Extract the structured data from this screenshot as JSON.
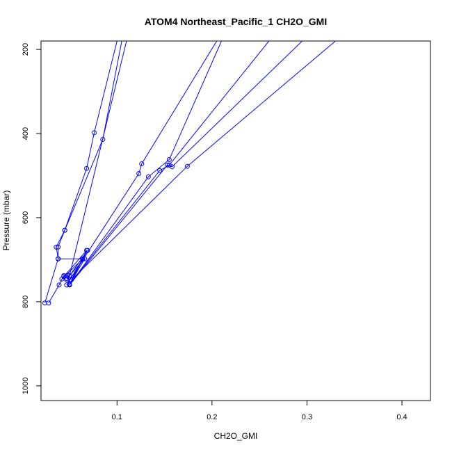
{
  "chart_data": {
    "type": "line",
    "title": "ATOM4 Northeast_Pacific_1 CH2O_GMI",
    "xlabel": "CH2O_GMI",
    "ylabel": "Pressure (mbar)",
    "xlim": [
      0.02,
      0.43
    ],
    "ylim": [
      1035,
      180
    ],
    "x_ticks": [
      0.1,
      0.2,
      0.3,
      0.4
    ],
    "x_tick_labels": [
      "0.1",
      "0.2",
      "0.3",
      "0.4"
    ],
    "y_ticks": [
      200,
      400,
      600,
      800,
      1000
    ],
    "y_tick_labels": [
      "200",
      "400",
      "600",
      "800",
      "1000"
    ],
    "grid": false,
    "line_color": "#0000ff",
    "series": [
      {
        "points": [
          [
            0.028,
            803
          ],
          [
            0.039,
            760
          ],
          [
            0.044,
            738
          ],
          [
            0.048,
            738
          ],
          [
            0.05,
            738
          ],
          [
            0.11,
            180
          ]
        ]
      },
      {
        "points": [
          [
            0.024,
            803
          ],
          [
            0.038,
            698
          ],
          [
            0.038,
            670
          ],
          [
            0.045,
            630
          ],
          [
            0.068,
            483
          ],
          [
            0.076,
            398
          ],
          [
            0.1,
            180
          ]
        ]
      },
      {
        "points": [
          [
            0.038,
            698
          ],
          [
            0.036,
            670
          ],
          [
            0.045,
            630
          ],
          [
            0.085,
            414
          ],
          [
            0.105,
            180
          ]
        ]
      },
      {
        "points": [
          [
            0.038,
            698
          ],
          [
            0.064,
            698
          ],
          [
            0.047,
            760
          ],
          [
            0.123,
            495
          ],
          [
            0.126,
            472
          ],
          [
            0.205,
            180
          ]
        ]
      },
      {
        "points": [
          [
            0.042,
            746
          ],
          [
            0.064,
            698
          ],
          [
            0.05,
            760
          ],
          [
            0.133,
            503
          ],
          [
            0.155,
            462
          ],
          [
            0.21,
            180
          ]
        ]
      },
      {
        "points": [
          [
            0.047,
            745
          ],
          [
            0.066,
            698
          ],
          [
            0.05,
            758
          ],
          [
            0.145,
            488
          ],
          [
            0.155,
            475
          ],
          [
            0.26,
            180
          ]
        ]
      },
      {
        "points": [
          [
            0.044,
            740
          ],
          [
            0.068,
            678
          ],
          [
            0.05,
            760
          ],
          [
            0.153,
            475
          ],
          [
            0.158,
            479
          ],
          [
            0.295,
            180
          ]
        ]
      },
      {
        "points": [
          [
            0.047,
            748
          ],
          [
            0.069,
            678
          ],
          [
            0.052,
            748
          ],
          [
            0.174,
            478
          ],
          [
            0.33,
            180
          ]
        ]
      }
    ]
  }
}
